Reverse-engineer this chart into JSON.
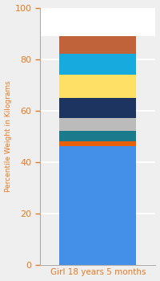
{
  "category": "Girl 18 years 5 months",
  "segments": [
    {
      "value": 46,
      "color": "#4490E8"
    },
    {
      "value": 2,
      "color": "#E8600A"
    },
    {
      "value": 4,
      "color": "#1B7A8C"
    },
    {
      "value": 5,
      "color": "#BBBBBB"
    },
    {
      "value": 8,
      "color": "#1D3461"
    },
    {
      "value": 9,
      "color": "#FFE066"
    },
    {
      "value": 8,
      "color": "#17AADF"
    },
    {
      "value": 7,
      "color": "#C0623A"
    }
  ],
  "ylabel": "Percentile Weight in Kilograms",
  "ylim": [
    0,
    100
  ],
  "yticks": [
    0,
    20,
    40,
    60,
    80,
    100
  ],
  "bar_width": 0.6,
  "bg_color": "#EFEFEF",
  "axes_bg_color": "#EFEFEF",
  "plot_bg_top": "#FFFFFF",
  "grid_color": "#FFFFFF",
  "tick_color": "#E87820",
  "label_color": "#E87820",
  "spine_color": "#AAAAAA"
}
